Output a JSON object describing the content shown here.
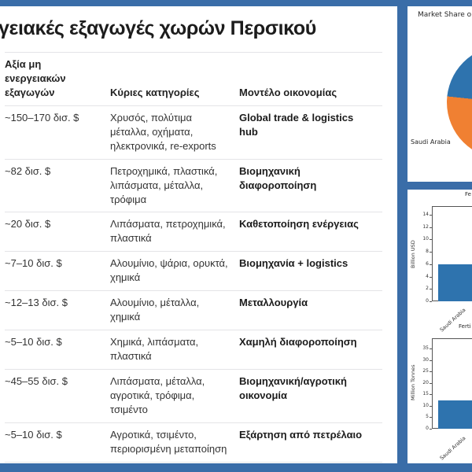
{
  "colors": {
    "frame_blue": "#3a6da8",
    "chart_blue": "#2e73ae",
    "chart_orange": "#f08032",
    "card_background": "#ffffff"
  },
  "table_card": {
    "title": "γειακές εξαγωγές χωρών Περσικού",
    "columns": [
      "Αξία μη ενεργειακών εξαγωγών",
      "Κύριες κατηγορίες",
      "Μοντέλο οικονομίας"
    ],
    "rows": [
      {
        "value": "~150–170 δισ. $",
        "categories": "Χρυσός, πολύτιμα μέταλλα, οχήματα, ηλεκτρονικά, re-exports",
        "model": "Global trade & logistics hub"
      },
      {
        "value": "~82 δισ. $",
        "categories": "Πετροχημικά, πλαστικά, λιπάσματα, μέταλλα, τρόφιμα",
        "model": "Βιομηχανική διαφοροποίηση"
      },
      {
        "value": "~20 δισ. $",
        "categories": "Λιπάσματα, πετροχημικά, πλαστικά",
        "model": "Καθετοποίηση ενέργειας"
      },
      {
        "value": "~7–10 δισ. $",
        "categories": "Αλουμίνιο, ψάρια, ορυκτά, χημικά",
        "model": "Βιομηχανία + logistics"
      },
      {
        "value": "~12–13 δισ. $",
        "categories": "Αλουμίνιο, μέταλλα, χημικά",
        "model": "Μεταλλουργία"
      },
      {
        "value": "~5–10 δισ. $",
        "categories": "Χημικά, λιπάσματα, πλαστικά",
        "model": "Χαμηλή διαφοροποίηση"
      },
      {
        "value": "~45–55 δισ. $",
        "categories": "Λιπάσματα, μέταλλα, αγροτικά, τρόφιμα, τσιμέντο",
        "model": "Βιομηχανική/αγροτική οικονομία"
      },
      {
        "value": "~5–10 δισ. $",
        "categories": "Αγροτικά, τσιμέντο, περιορισμένη μεταποίηση",
        "model": "Εξάρτηση από πετρέλαιο"
      }
    ]
  },
  "chart_data": [
    {
      "type": "pie",
      "title": "Market Share o",
      "visible_labels": [
        "Saudi Arabia"
      ],
      "slices": [
        {
          "label": "",
          "color": "#2e73ae",
          "approx_visible_pct": 35
        },
        {
          "label": "Saudi Arabia",
          "color": "#f08032",
          "approx_visible_pct": 65
        }
      ],
      "legend_position": "none",
      "note_visible_region": "left arc only, rest cropped at right edge"
    },
    {
      "type": "bar",
      "title": "Fe",
      "ylabel": "Billion USD",
      "xlabel": "",
      "categories": [
        "Saudi Arabia"
      ],
      "values": [
        6
      ],
      "yticks": [
        0,
        2,
        4,
        6,
        8,
        10,
        12,
        14
      ],
      "ylim": [
        0,
        15.4
      ],
      "grid": false
    },
    {
      "type": "bar",
      "title": "Ferti",
      "ylabel": "Million Tonnes",
      "xlabel": "",
      "categories": [
        "Saudi Arabia"
      ],
      "values": [
        12.5
      ],
      "yticks": [
        0,
        5,
        10,
        15,
        20,
        25,
        30,
        35
      ],
      "ylim": [
        0,
        39.5
      ],
      "grid": false
    }
  ]
}
